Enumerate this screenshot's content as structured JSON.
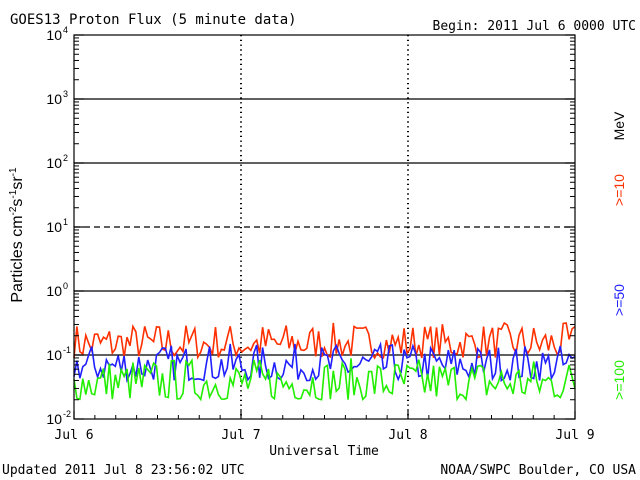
{
  "header": {
    "title": "GOES13 Proton Flux (5 minute data)",
    "begin": "Begin: 2011 Jul 6 0000 UTC"
  },
  "footer": {
    "updated": "Updated 2011 Jul  8 23:56:02 UTC",
    "credit": "NOAA/SWPC Boulder, CO USA"
  },
  "chart_data": {
    "type": "line",
    "title": "GOES13 Proton Flux (5 minute data)",
    "xlabel": "Universal Time",
    "ylabel": "Particles cm-2s-1sr-1",
    "yscale": "log",
    "ylim": [
      0.01,
      10000
    ],
    "xlim": [
      0,
      3
    ],
    "x_unit": "days since Jul 6 0000 UTC",
    "x_ticks": [
      {
        "x": 0,
        "label": "Jul 6"
      },
      {
        "x": 1,
        "label": "Jul 7"
      },
      {
        "x": 2,
        "label": "Jul 8"
      },
      {
        "x": 3,
        "label": "Jul 9"
      }
    ],
    "y_ticks": [
      {
        "value": 0.01,
        "base": "10",
        "exp": "-2"
      },
      {
        "value": 0.1,
        "base": "10",
        "exp": "-1"
      },
      {
        "value": 1,
        "base": "10",
        "exp": "0"
      },
      {
        "value": 10,
        "base": "10",
        "exp": "1"
      },
      {
        "value": 100,
        "base": "10",
        "exp": "2"
      },
      {
        "value": 1000,
        "base": "10",
        "exp": "3"
      },
      {
        "value": 10000,
        "base": "10",
        "exp": "4"
      }
    ],
    "threshold_line": {
      "value": 10,
      "style": "dashed"
    },
    "legend_unit": "MeV",
    "series": [
      {
        "name": ">=10",
        "color": "#ff3000",
        "typical_range": [
          0.09,
          0.32
        ]
      },
      {
        "name": ">=50",
        "color": "#2020ff",
        "typical_range": [
          0.04,
          0.15
        ]
      },
      {
        "name": ">=100",
        "color": "#22ee00",
        "typical_range": [
          0.02,
          0.09
        ]
      }
    ],
    "grid": "horizontal lines at each decade"
  }
}
